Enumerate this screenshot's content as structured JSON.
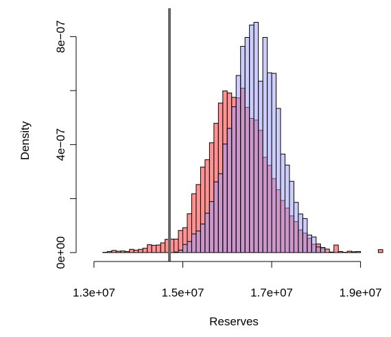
{
  "chart_data": {
    "type": "histogram",
    "title": "",
    "xlabel": "Reserves",
    "ylabel": "Density",
    "xlim": [
      12800000,
      19500000
    ],
    "ylim": [
      0,
      9e-07
    ],
    "x_ticks": [
      13000000,
      15000000,
      17000000,
      19000000
    ],
    "x_tick_labels": [
      "1.3e+07",
      "1.5e+07",
      "1.7e+07",
      "1.9e+07"
    ],
    "y_ticks": [
      0,
      4e-07,
      8e-07
    ],
    "y_tick_labels": [
      "0e+00",
      "4e−07",
      "8e−07"
    ],
    "y_minor_ticks": [
      2e-07,
      6e-07
    ],
    "bin_width": 200000,
    "series": [
      {
        "color": "#ff7f7f",
        "start": 13100000,
        "bin_width": 100000,
        "values": [
          0.0,
          1e-09,
          4e-09,
          8e-09,
          5e-09,
          6e-09,
          4e-09,
          1.2e-08,
          9e-09,
          1.2e-08,
          1.6e-08,
          2.9e-08,
          2.7e-08,
          2.8e-08,
          3.6e-08,
          4.9e-08,
          5e-08,
          5e-08,
          8.2e-08,
          9.2e-08,
          1.44e-07,
          2.18e-07,
          2.52e-07,
          3.17e-07,
          3.44e-07,
          4.07e-07,
          4.79e-07,
          5.54e-07,
          5.99e-07,
          5.91e-07,
          5.75e-07,
          5.73e-07,
          6.09e-07,
          5.38e-07,
          4.97e-07,
          4.91e-07,
          4.53e-07,
          3.53e-07,
          3.23e-07,
          2.74e-07,
          2.33e-07,
          1.93e-07,
          1.65e-07,
          1.36e-07,
          1.15e-07,
          8.4e-08,
          7.2e-08,
          5.3e-08,
          3.1e-08,
          3.2e-08,
          1.5e-08,
          1.3e-08,
          2e-09,
          2.8e-08,
          4e-09,
          1e-09,
          5e-09,
          3e-09,
          4e-09,
          0.0,
          0.0,
          0.0,
          0.0,
          1.1e-08
        ]
      },
      {
        "color": "#9999ff",
        "start": 14800000,
        "bin_width": 100000,
        "values": [
          2e-09,
          9e-09,
          3e-08,
          4.1e-08,
          6.9e-08,
          8e-08,
          1.06e-07,
          1.46e-07,
          1.89e-07,
          2.62e-07,
          2.92e-07,
          4.02e-07,
          4.6e-07,
          5.4e-07,
          6.56e-07,
          7.64e-07,
          7.97e-07,
          8.43e-07,
          8.53e-07,
          6.35e-07,
          7.97e-07,
          6.66e-07,
          6.64e-07,
          5.34e-07,
          3.65e-07,
          3.24e-07,
          2.64e-07,
          1.86e-07,
          1.43e-07,
          1.26e-07,
          6.5e-08,
          5.8e-08,
          2.1e-08,
          1.9e-08
        ]
      }
    ],
    "vline": {
      "x": 14700000,
      "color": "#666666"
    }
  }
}
